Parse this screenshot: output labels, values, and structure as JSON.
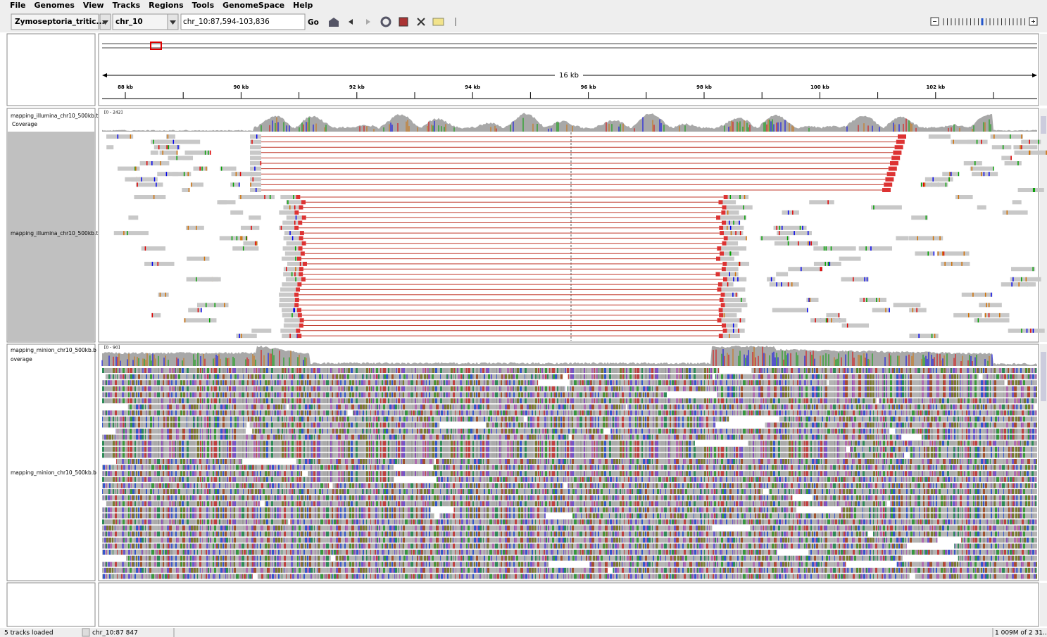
{
  "menu": [
    "File",
    "Genomes",
    "View",
    "Tracks",
    "Regions",
    "Tools",
    "GenomeSpace",
    "Help"
  ],
  "toolbar": {
    "genome": "Zymoseptoria_tritic...",
    "chromosome": "chr_10",
    "locus": "chr_10:87,594-103,836",
    "go": "Go"
  },
  "ruler": {
    "span": "16 kb",
    "ticks": [
      "88 kb",
      "90 kb",
      "92 kb",
      "94 kb",
      "96 kb",
      "98 kb",
      "100 kb",
      "102 kb"
    ]
  },
  "tracks": [
    {
      "coverage_name": [
        "mapping_illumina_chr10_500kb.t",
        "Coverage"
      ],
      "range": "[0 - 242]",
      "name": "mapping_illumina_chr10_500kb.t"
    },
    {
      "coverage_name": [
        "mapping_minion_chr10_500kb.b",
        "overage"
      ],
      "range": "[0 - 90]",
      "name": "mapping_minion_chr10_500kb.b"
    }
  ],
  "status": [
    "5 tracks loaded",
    "chr_10:87 847",
    "1 009M of 2 31..."
  ]
}
